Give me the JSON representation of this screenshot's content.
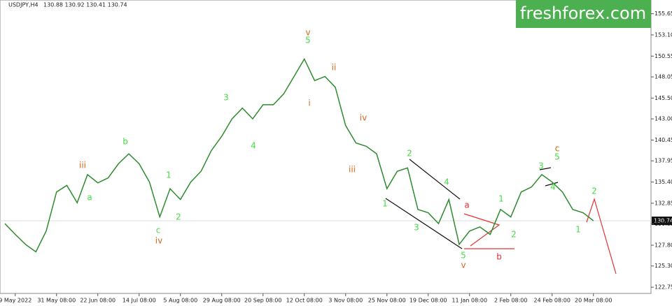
{
  "chart_data": {
    "type": "line",
    "title": "USDJPY,H4",
    "subtitle": "130.88 130.92 130.41 130.74",
    "brand": "freshforex.com",
    "current_price": 130.74,
    "categories": [
      null,
      "9 May 2022",
      null,
      null,
      null,
      "31 May 08:00",
      null,
      null,
      null,
      "22 Jun 08:00",
      null,
      null,
      null,
      "14 Jul 08:00",
      null,
      null,
      null,
      "5 Aug 08:00",
      null,
      null,
      null,
      "29 Aug 08:00",
      null,
      null,
      null,
      "20 Sep 08:00",
      null,
      null,
      null,
      "12 Oct 08:00",
      null,
      null,
      null,
      "3 Nov 08:00",
      null,
      null,
      null,
      "25 Nov 08:00",
      null,
      null,
      null,
      "19 Dec 08:00",
      null,
      null,
      null,
      "11 Jan 08:00",
      null,
      null,
      null,
      "2 Feb 08:00",
      null,
      null,
      null,
      "24 Feb 08:00",
      null,
      null,
      null,
      "20 Mar 08:00"
    ],
    "series": [
      {
        "name": "USDJPY",
        "color": "#2e8b2e",
        "values": [
          130.4,
          129.1,
          127.9,
          127.0,
          129.5,
          134.2,
          135.0,
          132.9,
          136.3,
          135.3,
          135.9,
          137.6,
          138.8,
          137.6,
          135.4,
          131.2,
          134.6,
          133.3,
          135.4,
          136.7,
          139.2,
          140.9,
          143.0,
          144.3,
          143.0,
          144.7,
          144.7,
          146.0,
          148.1,
          150.2,
          147.6,
          148.1,
          146.8,
          142.2,
          140.1,
          139.7,
          138.8,
          134.6,
          136.7,
          137.1,
          132.1,
          131.7,
          130.4,
          133.3,
          127.9,
          129.5,
          130.0,
          129.1,
          132.1,
          131.2,
          134.2,
          134.8,
          136.3,
          135.4,
          134.2,
          132.1,
          131.7,
          130.74
        ]
      }
    ],
    "ylim": [
      122.0,
      157.3
    ],
    "yticks": [
      122.75,
      {
        "value": 125.3,
        "label": "125.30"
      },
      {
        "value": 127.8,
        "label": "127.80"
      },
      130.35,
      132.85,
      {
        "value": 135.4,
        "label": "135.40"
      },
      137.95,
      140.45,
      {
        "value": 143.0,
        "label": "143.00"
      },
      {
        "value": 145.5,
        "label": "145.50"
      },
      148.05,
      150.55,
      {
        "value": 153.1,
        "label": "153.10"
      },
      155.65
    ],
    "annotations": [
      {
        "text": "v",
        "color": "#d2691e"
      },
      {
        "text": "5",
        "color": "#44dd44"
      },
      {
        "text": "iii",
        "color": "#d2691e"
      },
      {
        "text": "b",
        "color": "#44dd44"
      },
      {
        "text": "a",
        "color": "#44dd44"
      },
      {
        "text": "1",
        "color": "#44dd44"
      },
      {
        "text": "2",
        "color": "#44dd44"
      },
      {
        "text": "c",
        "color": "#44dd44"
      },
      {
        "text": "iv",
        "color": "#d2691e"
      },
      {
        "text": "3",
        "color": "#44dd44"
      },
      {
        "text": "4",
        "color": "#44dd44"
      },
      {
        "text": "i",
        "color": "#d2691e"
      },
      {
        "text": "ii",
        "color": "#d2691e"
      },
      {
        "text": "iv",
        "color": "#d2691e"
      },
      {
        "text": "iii",
        "color": "#d2691e"
      },
      {
        "text": "2",
        "color": "#44dd44"
      },
      {
        "text": "4",
        "color": "#44dd44"
      },
      {
        "text": "1",
        "color": "#44dd44"
      },
      {
        "text": "3",
        "color": "#44dd44"
      },
      {
        "text": "5",
        "color": "#44dd44"
      },
      {
        "text": "v",
        "color": "#d2691e"
      },
      {
        "text": "a",
        "color": "#e33333"
      },
      {
        "text": "b",
        "color": "#e33333"
      },
      {
        "text": "1",
        "color": "#44dd44"
      },
      {
        "text": "2",
        "color": "#44dd44"
      },
      {
        "text": "3",
        "color": "#44dd44"
      },
      {
        "text": "5",
        "color": "#44dd44"
      },
      {
        "text": "c",
        "color": "#d2691e"
      },
      {
        "text": "4",
        "color": "#44dd44"
      },
      {
        "text": "2",
        "color": "#44dd44"
      },
      {
        "text": "1",
        "color": "#44dd44"
      }
    ]
  }
}
